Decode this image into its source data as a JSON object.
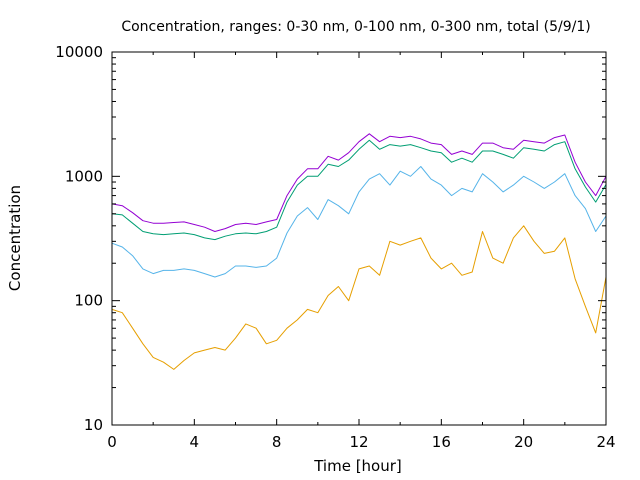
{
  "chart_data": {
    "type": "line",
    "title": "Concentration, ranges: 0-30 nm, 0-100 nm, 0-300 nm, total (5/9/1)",
    "xlabel": "Time [hour]",
    "ylabel": "Concentration",
    "xlim": [
      0,
      24
    ],
    "ylim": [
      10,
      10000
    ],
    "yscale": "log",
    "grid": false,
    "legend": "none",
    "x_ticks": [
      0,
      4,
      8,
      12,
      16,
      20,
      24
    ],
    "x_tick_labels": [
      "0",
      "4",
      "8",
      "12",
      "16",
      "20",
      "24"
    ],
    "y_ticks": [
      10,
      100,
      1000,
      10000
    ],
    "y_tick_labels": [
      "10",
      "100",
      "1000",
      "10000"
    ],
    "x": [
      0,
      0.5,
      1,
      1.5,
      2,
      2.5,
      3,
      3.5,
      4,
      4.5,
      5,
      5.5,
      6,
      6.5,
      7,
      7.5,
      8,
      8.5,
      9,
      9.5,
      10,
      10.5,
      11,
      11.5,
      12,
      12.5,
      13,
      13.5,
      14,
      14.5,
      15,
      15.5,
      16,
      16.5,
      17,
      17.5,
      18,
      18.5,
      19,
      19.5,
      20,
      20.5,
      21,
      21.5,
      22,
      22.5,
      23,
      23.5,
      24
    ],
    "series": [
      {
        "color": "#e69f00",
        "values": [
          85,
          80,
          60,
          45,
          35,
          32,
          28,
          33,
          38,
          40,
          42,
          40,
          50,
          65,
          60,
          45,
          48,
          60,
          70,
          85,
          80,
          110,
          130,
          100,
          180,
          190,
          160,
          300,
          280,
          300,
          320,
          220,
          180,
          200,
          160,
          170,
          360,
          220,
          200,
          320,
          400,
          300,
          240,
          250,
          320,
          150,
          90,
          55,
          155
        ]
      },
      {
        "color": "#56b4e9",
        "values": [
          290,
          270,
          230,
          180,
          165,
          175,
          175,
          180,
          175,
          165,
          155,
          165,
          190,
          190,
          185,
          190,
          220,
          350,
          480,
          560,
          450,
          650,
          580,
          500,
          750,
          950,
          1050,
          850,
          1100,
          1000,
          1200,
          950,
          850,
          700,
          800,
          750,
          1050,
          900,
          750,
          850,
          1000,
          900,
          800,
          900,
          1050,
          700,
          550,
          360,
          480
        ]
      },
      {
        "color": "#009e73",
        "values": [
          500,
          490,
          420,
          360,
          345,
          340,
          345,
          350,
          340,
          320,
          310,
          330,
          345,
          350,
          345,
          360,
          390,
          620,
          850,
          1000,
          1000,
          1250,
          1200,
          1350,
          1650,
          1950,
          1650,
          1800,
          1750,
          1800,
          1700,
          1600,
          1550,
          1300,
          1400,
          1300,
          1600,
          1600,
          1500,
          1400,
          1700,
          1650,
          1600,
          1800,
          1900,
          1150,
          820,
          620,
          860
        ]
      },
      {
        "color": "#9400d3",
        "values": [
          600,
          580,
          510,
          440,
          420,
          420,
          425,
          430,
          410,
          390,
          360,
          380,
          410,
          420,
          410,
          430,
          450,
          700,
          950,
          1150,
          1150,
          1450,
          1350,
          1550,
          1900,
          2200,
          1900,
          2100,
          2050,
          2100,
          2000,
          1850,
          1800,
          1500,
          1600,
          1500,
          1850,
          1850,
          1700,
          1650,
          1950,
          1900,
          1850,
          2050,
          2150,
          1300,
          900,
          700,
          1000
        ]
      }
    ]
  }
}
